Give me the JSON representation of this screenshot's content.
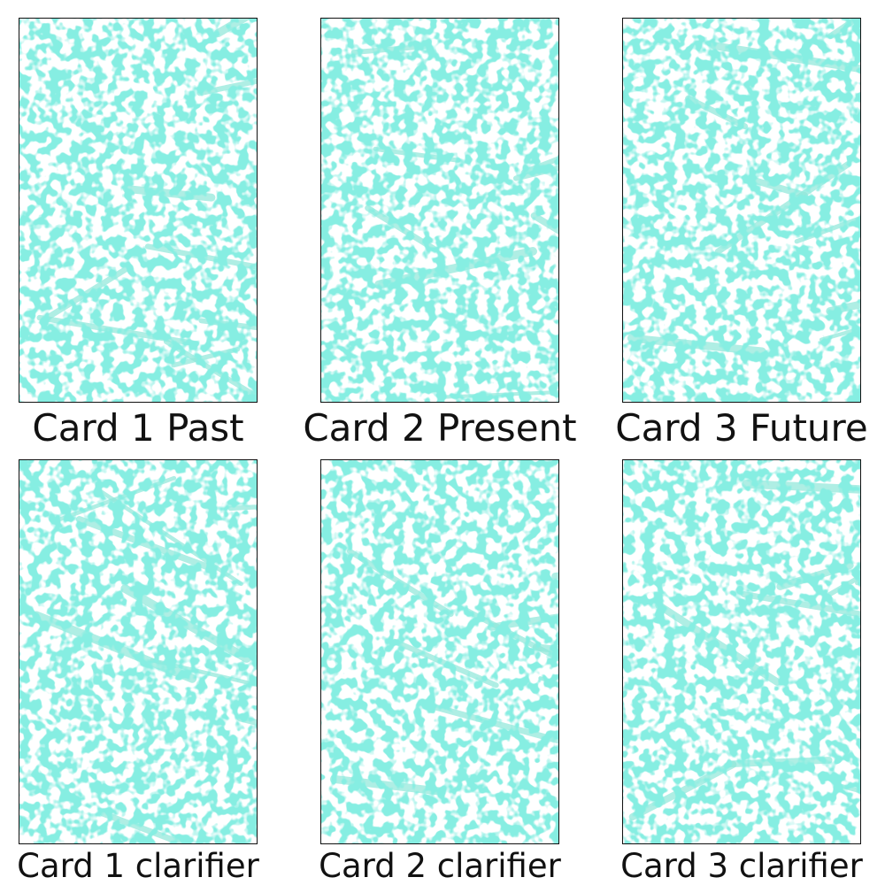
{
  "colors": {
    "pattern": "#3dd9c1",
    "pattern_light": "#8ee8da",
    "background": "#ffffff",
    "border": "#111111",
    "text": "#111111"
  },
  "cards": [
    {
      "label": "Card 1 Past"
    },
    {
      "label": "Card 2 Present"
    },
    {
      "label": "Card 3 Future"
    },
    {
      "label": "Card 1 clarifier"
    },
    {
      "label": "Card 2 clarifier"
    },
    {
      "label": "Card 3 clarifier"
    }
  ]
}
